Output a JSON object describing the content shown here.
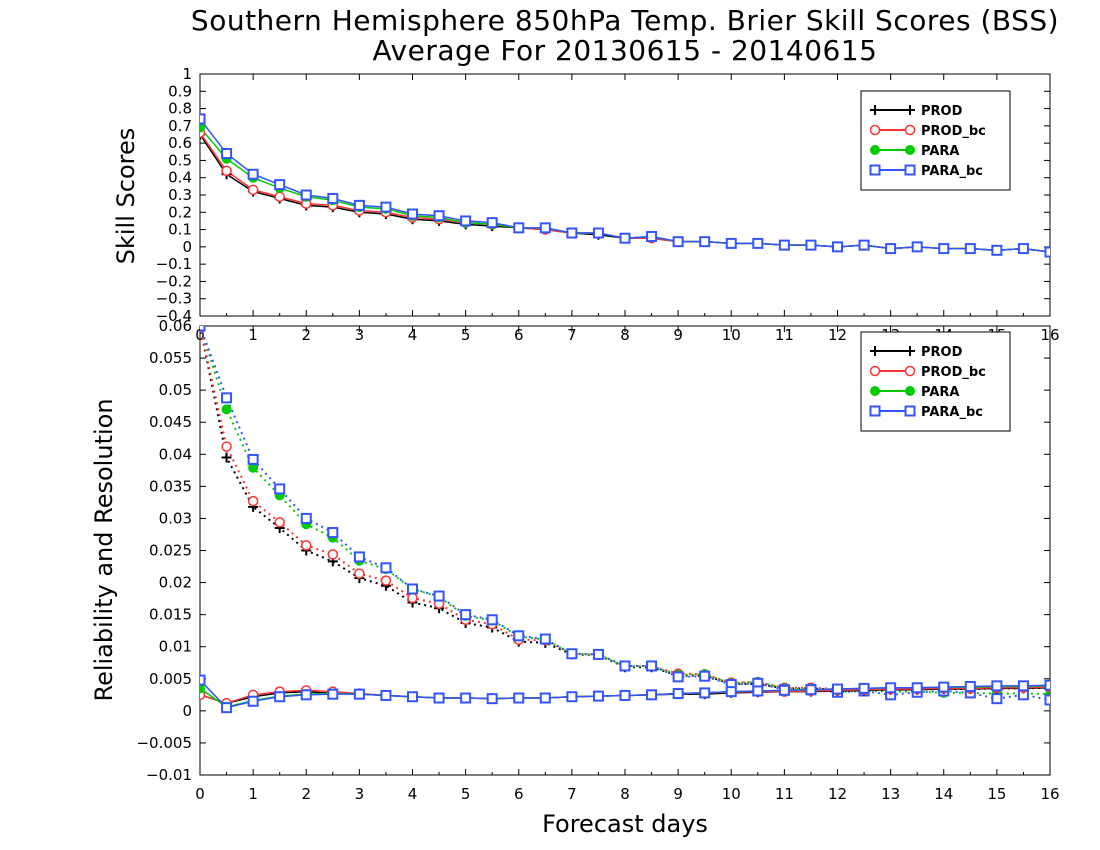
{
  "page": {
    "title_line1": "Southern Hemisphere 850hPa Temp. Brier Skill Scores (BSS)",
    "title_line2": "Average For 20130615 - 20140615"
  },
  "chart_data": [
    {
      "type": "line",
      "ylabel": "Skill Scores",
      "xlabel": "",
      "xlim": [
        0,
        16
      ],
      "ylim": [
        -0.4,
        1
      ],
      "x_ticks": [
        "0",
        "1",
        "2",
        "3",
        "4",
        "5",
        "6",
        "7",
        "8",
        "9",
        "10",
        "11",
        "12",
        "13",
        "14",
        "15",
        "16"
      ],
      "y_ticks": [
        "-0.4",
        "-0.3",
        "-0.2",
        "-0.1",
        "0",
        "0.1",
        "0.2",
        "0.3",
        "0.4",
        "0.5",
        "0.6",
        "0.7",
        "0.8",
        "0.9",
        "1"
      ],
      "legend_position": "top-right",
      "x": [
        0,
        0.5,
        1,
        1.5,
        2,
        2.5,
        3,
        3.5,
        4,
        4.5,
        5,
        5.5,
        6,
        6.5,
        7,
        7.5,
        8,
        8.5,
        9,
        9.5,
        10,
        10.5,
        11,
        11.5,
        12,
        12.5,
        13,
        13.5,
        14,
        14.5,
        15,
        15.5,
        16
      ],
      "series": [
        {
          "name": "PROD",
          "color": "#000000",
          "marker": "plus",
          "values": [
            0.65,
            0.42,
            0.32,
            0.28,
            0.24,
            0.23,
            0.2,
            0.19,
            0.16,
            0.15,
            0.13,
            0.12,
            0.11,
            0.1,
            0.08,
            0.07,
            0.05,
            0.05,
            0.03,
            0.03,
            0.02,
            0.02,
            0.01,
            0.01,
            0.0,
            0.01,
            -0.01,
            0.0,
            -0.01,
            -0.01,
            -0.02,
            -0.01,
            -0.03
          ]
        },
        {
          "name": "PROD_bc",
          "color": "#ff3333",
          "marker": "circle",
          "values": [
            0.66,
            0.44,
            0.33,
            0.29,
            0.25,
            0.24,
            0.21,
            0.2,
            0.17,
            0.16,
            0.14,
            0.13,
            0.11,
            0.1,
            0.08,
            0.08,
            0.05,
            0.05,
            0.03,
            0.03,
            0.02,
            0.02,
            0.01,
            0.01,
            0.0,
            0.01,
            -0.01,
            0.0,
            -0.01,
            -0.01,
            -0.02,
            -0.01,
            -0.03
          ]
        },
        {
          "name": "PARA",
          "color": "#00cc00",
          "marker": "dot",
          "values": [
            0.69,
            0.51,
            0.4,
            0.34,
            0.29,
            0.27,
            0.23,
            0.22,
            0.18,
            0.17,
            0.14,
            0.13,
            0.11,
            0.11,
            0.08,
            0.08,
            0.05,
            0.06,
            0.03,
            0.03,
            0.02,
            0.02,
            0.01,
            0.01,
            0.0,
            0.01,
            -0.01,
            0.0,
            -0.01,
            -0.01,
            -0.02,
            -0.01,
            -0.03
          ]
        },
        {
          "name": "PARA_bc",
          "color": "#3355ff",
          "marker": "square",
          "values": [
            0.74,
            0.54,
            0.42,
            0.36,
            0.3,
            0.28,
            0.24,
            0.23,
            0.19,
            0.18,
            0.15,
            0.14,
            0.11,
            0.11,
            0.08,
            0.08,
            0.05,
            0.06,
            0.03,
            0.03,
            0.02,
            0.02,
            0.01,
            0.01,
            0.0,
            0.01,
            -0.01,
            0.0,
            -0.01,
            -0.01,
            -0.02,
            -0.01,
            -0.03
          ]
        }
      ]
    },
    {
      "type": "line",
      "ylabel": "Reliability and Resolution",
      "xlabel": "Forecast days",
      "xlim": [
        0,
        16
      ],
      "ylim": [
        -0.01,
        0.06
      ],
      "x_ticks": [
        "0",
        "1",
        "2",
        "3",
        "4",
        "5",
        "6",
        "7",
        "8",
        "9",
        "10",
        "11",
        "12",
        "13",
        "14",
        "15",
        "16"
      ],
      "y_ticks": [
        "-0.01",
        "-0.005",
        "0",
        "0.005",
        "0.01",
        "0.015",
        "0.02",
        "0.025",
        "0.03",
        "0.035",
        "0.04",
        "0.045",
        "0.05",
        "0.055",
        "0.06"
      ],
      "legend_position": "top-right",
      "x": [
        0,
        0.5,
        1,
        1.5,
        2,
        2.5,
        3,
        3.5,
        4,
        4.5,
        5,
        5.5,
        6,
        6.5,
        7,
        7.5,
        8,
        8.5,
        9,
        9.5,
        10,
        10.5,
        11,
        11.5,
        12,
        12.5,
        13,
        13.5,
        14,
        14.5,
        15,
        15.5,
        16
      ],
      "series": [
        {
          "name": "PROD",
          "color": "#000000",
          "marker": "plus",
          "group": "resolution",
          "values": [
            0.06,
            0.0395,
            0.0318,
            0.0285,
            0.025,
            0.0233,
            0.0207,
            0.0195,
            0.0169,
            0.016,
            0.0137,
            0.013,
            0.0108,
            0.0106,
            0.0088,
            0.0087,
            0.0068,
            0.0068,
            0.0055,
            0.0055,
            0.0042,
            0.0042,
            0.0035,
            0.0035,
            0.0033,
            0.0033,
            0.0033,
            0.0034,
            0.0034,
            0.0034,
            0.0035,
            0.0035,
            0.0036
          ]
        },
        {
          "name": "PROD_bc",
          "color": "#ff3333",
          "marker": "circle",
          "group": "resolution",
          "values": [
            0.06,
            0.0412,
            0.0327,
            0.0294,
            0.0258,
            0.0244,
            0.0214,
            0.0203,
            0.0176,
            0.0167,
            0.0142,
            0.0135,
            0.0111,
            0.011,
            0.0089,
            0.0088,
            0.007,
            0.007,
            0.0058,
            0.0057,
            0.0044,
            0.0045,
            0.0036,
            0.0036,
            0.0034,
            0.0034,
            0.0034,
            0.0035,
            0.0035,
            0.0035,
            0.0036,
            0.0037,
            0.0038
          ]
        },
        {
          "name": "PARA",
          "color": "#00cc00",
          "marker": "dot",
          "group": "resolution",
          "values": [
            0.06,
            0.047,
            0.0379,
            0.0336,
            0.0291,
            0.027,
            0.0234,
            0.0221,
            0.019,
            0.0178,
            0.0148,
            0.0141,
            0.0116,
            0.0111,
            0.0089,
            0.0088,
            0.0069,
            0.007,
            0.0056,
            0.0057,
            0.0043,
            0.0045,
            0.0035,
            0.0034,
            0.003,
            0.0031,
            0.003,
            0.003,
            0.0028,
            0.0028,
            0.0027,
            0.0027,
            0.0026
          ]
        },
        {
          "name": "PARA_bc",
          "color": "#3355ff",
          "marker": "square",
          "group": "resolution",
          "values": [
            0.06,
            0.0488,
            0.0392,
            0.0346,
            0.03,
            0.0278,
            0.024,
            0.0223,
            0.019,
            0.0179,
            0.015,
            0.0142,
            0.0117,
            0.0112,
            0.0089,
            0.0088,
            0.007,
            0.007,
            0.0053,
            0.0054,
            0.0041,
            0.0043,
            0.0033,
            0.0033,
            0.0029,
            0.0031,
            0.0025,
            0.0029,
            0.0031,
            0.0028,
            0.0019,
            0.0025,
            0.0017
          ]
        },
        {
          "name": "PROD",
          "color": "#000000",
          "marker": "plus",
          "group": "reliability",
          "values": [
            0.0025,
            0.0012,
            0.0022,
            0.0028,
            0.003,
            0.0027,
            0.0026,
            0.0024,
            0.0022,
            0.002,
            0.002,
            0.0019,
            0.002,
            0.002,
            0.0022,
            0.0023,
            0.0024,
            0.0025,
            0.0026,
            0.0026,
            0.0028,
            0.0029,
            0.003,
            0.003,
            0.0031,
            0.0032,
            0.0033,
            0.0033,
            0.0034,
            0.0034,
            0.0035,
            0.0035,
            0.0036
          ]
        },
        {
          "name": "PROD_bc",
          "color": "#ff3333",
          "marker": "circle",
          "group": "reliability",
          "values": [
            0.0025,
            0.0012,
            0.0025,
            0.003,
            0.0032,
            0.003,
            0.0027,
            0.0024,
            0.0022,
            0.002,
            0.002,
            0.0019,
            0.002,
            0.002,
            0.0022,
            0.0023,
            0.0024,
            0.0025,
            0.0027,
            0.0028,
            0.0029,
            0.003,
            0.003,
            0.0031,
            0.0032,
            0.0033,
            0.0034,
            0.0034,
            0.0035,
            0.0035,
            0.0036,
            0.0036,
            0.0037
          ]
        },
        {
          "name": "PARA",
          "color": "#00cc00",
          "marker": "dot",
          "group": "reliability",
          "values": [
            0.0035,
            0.0006,
            0.0016,
            0.0023,
            0.0026,
            0.0027,
            0.0026,
            0.0024,
            0.0022,
            0.002,
            0.002,
            0.0019,
            0.002,
            0.002,
            0.0022,
            0.0023,
            0.0024,
            0.0025,
            0.0027,
            0.0028,
            0.003,
            0.0031,
            0.0032,
            0.0033,
            0.0034,
            0.0035,
            0.0036,
            0.0036,
            0.0037,
            0.0037,
            0.0038,
            0.0038,
            0.0039
          ]
        },
        {
          "name": "PARA_bc",
          "color": "#3355ff",
          "marker": "square",
          "group": "reliability",
          "values": [
            0.0048,
            0.0005,
            0.0015,
            0.0022,
            0.0025,
            0.0026,
            0.0026,
            0.0024,
            0.0022,
            0.002,
            0.002,
            0.0019,
            0.002,
            0.002,
            0.0022,
            0.0023,
            0.0024,
            0.0025,
            0.0027,
            0.0028,
            0.003,
            0.0031,
            0.0032,
            0.0033,
            0.0034,
            0.0035,
            0.0036,
            0.0036,
            0.0037,
            0.0038,
            0.0039,
            0.0039,
            0.004
          ]
        }
      ]
    }
  ]
}
